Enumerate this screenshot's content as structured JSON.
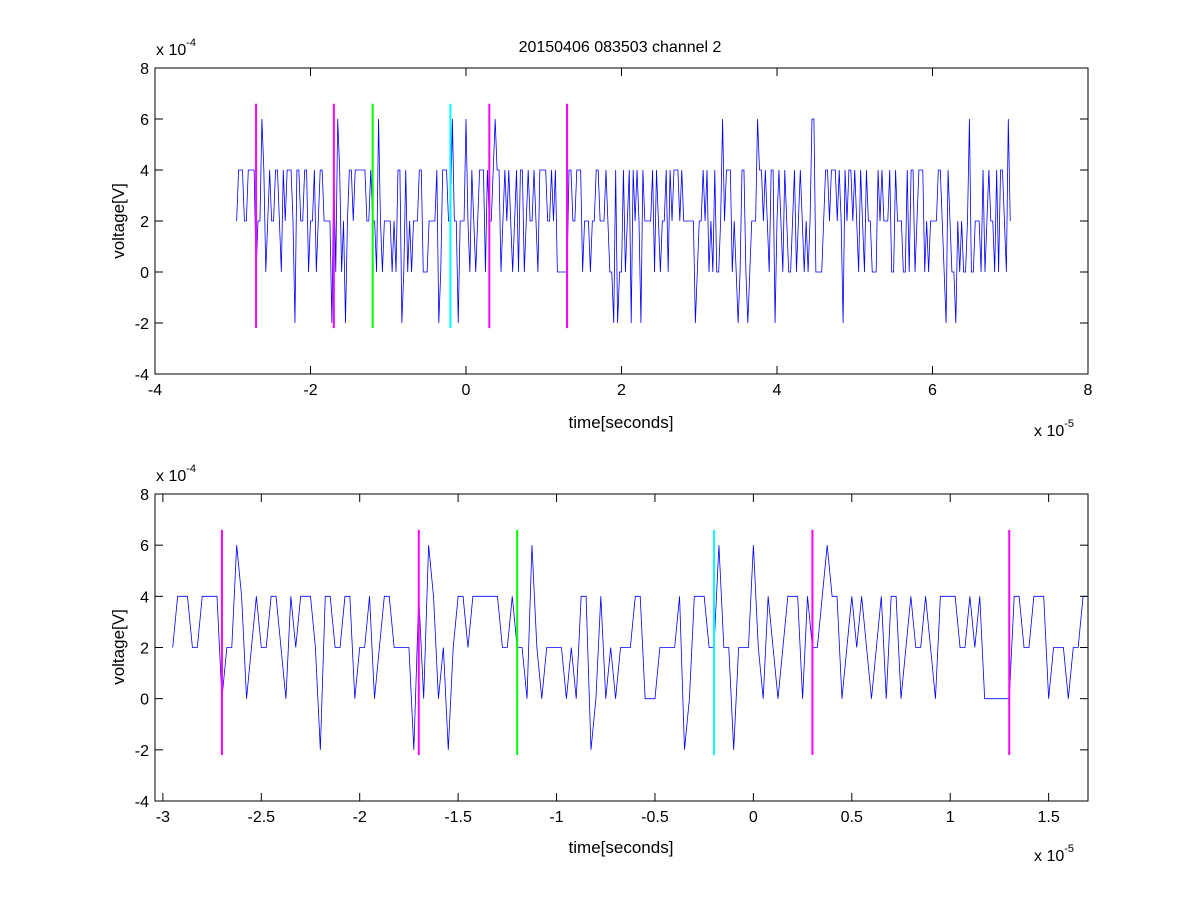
{
  "figure_title": "20150406 083503 channel 2",
  "colors": {
    "signal": "#0000ff",
    "marker_magenta": "#ff00ff",
    "marker_green": "#00ff00",
    "marker_cyan": "#00ffff",
    "axes": "#000000"
  },
  "chart_data": [
    {
      "type": "line",
      "title": "20150406 083503 channel 2",
      "xlabel": "time[seconds]",
      "ylabel": "voltage[V]",
      "x_exponent_label": "x 10",
      "x_exponent": "-5",
      "y_exponent_label": "x 10",
      "y_exponent": "-4",
      "xlim": [
        -4,
        8
      ],
      "ylim": [
        -4,
        8
      ],
      "xticks": [
        -4,
        -2,
        0,
        2,
        4,
        6,
        8
      ],
      "xtick_labels": [
        "-4",
        "-2",
        "0",
        "2",
        "4",
        "6",
        "8"
      ],
      "yticks": [
        -4,
        -2,
        0,
        2,
        4,
        6,
        8
      ],
      "ytick_labels": [
        "-4",
        "-2",
        "0",
        "2",
        "4",
        "6",
        "8"
      ],
      "grid": false,
      "signal": {
        "color": "#0000ff",
        "x_start": -2.95,
        "x_end": 7.02,
        "sample_step": 0.025,
        "levels": [
          -2,
          0,
          2,
          4,
          6
        ],
        "baseline": 2,
        "description_values_range": [
          -2,
          6
        ]
      },
      "markers": [
        {
          "x": -2.7,
          "color": "#ff00ff",
          "y_range": [
            -2.2,
            6.6
          ]
        },
        {
          "x": -1.7,
          "color": "#ff00ff",
          "y_range": [
            -2.2,
            6.6
          ]
        },
        {
          "x": -1.2,
          "color": "#00ff00",
          "y_range": [
            -2.2,
            6.6
          ]
        },
        {
          "x": -0.2,
          "color": "#00ffff",
          "y_range": [
            -2.2,
            6.6
          ]
        },
        {
          "x": 0.3,
          "color": "#ff00ff",
          "y_range": [
            -2.2,
            6.6
          ]
        },
        {
          "x": 1.3,
          "color": "#ff00ff",
          "y_range": [
            -2.2,
            6.6
          ]
        }
      ]
    },
    {
      "type": "line",
      "title": "",
      "xlabel": "time[seconds]",
      "ylabel": "voltage[V]",
      "x_exponent_label": "x 10",
      "x_exponent": "-5",
      "y_exponent_label": "x 10",
      "y_exponent": "-4",
      "xlim": [
        -3.04,
        1.7
      ],
      "ylim": [
        -4,
        8
      ],
      "xticks": [
        -3,
        -2.5,
        -2,
        -1.5,
        -1,
        -0.5,
        0,
        0.5,
        1,
        1.5
      ],
      "xtick_labels": [
        "-3",
        "-2.5",
        "-2",
        "-1.5",
        "-1",
        "-0.5",
        "0",
        "0.5",
        "1",
        "1.5"
      ],
      "yticks": [
        -4,
        -2,
        0,
        2,
        4,
        6,
        8
      ],
      "ytick_labels": [
        "-4",
        "-2",
        "0",
        "2",
        "4",
        "6",
        "8"
      ],
      "grid": false,
      "signal": {
        "color": "#0000ff",
        "x_start": -2.95,
        "x_end": 1.7,
        "sample_step": 0.025,
        "levels": [
          -2,
          0,
          2,
          4,
          6
        ],
        "baseline": 2,
        "description_values_range": [
          -2,
          6
        ]
      },
      "markers": [
        {
          "x": -2.7,
          "color": "#ff00ff",
          "y_range": [
            -2.2,
            6.6
          ]
        },
        {
          "x": -1.7,
          "color": "#ff00ff",
          "y_range": [
            -2.2,
            6.6
          ]
        },
        {
          "x": -1.2,
          "color": "#00ff00",
          "y_range": [
            -2.2,
            6.6
          ]
        },
        {
          "x": -0.2,
          "color": "#00ffff",
          "y_range": [
            -2.2,
            6.6
          ]
        },
        {
          "x": 0.3,
          "color": "#ff00ff",
          "y_range": [
            -2.2,
            6.6
          ]
        },
        {
          "x": 1.3,
          "color": "#ff00ff",
          "y_range": [
            -2.2,
            6.6
          ]
        }
      ]
    }
  ]
}
